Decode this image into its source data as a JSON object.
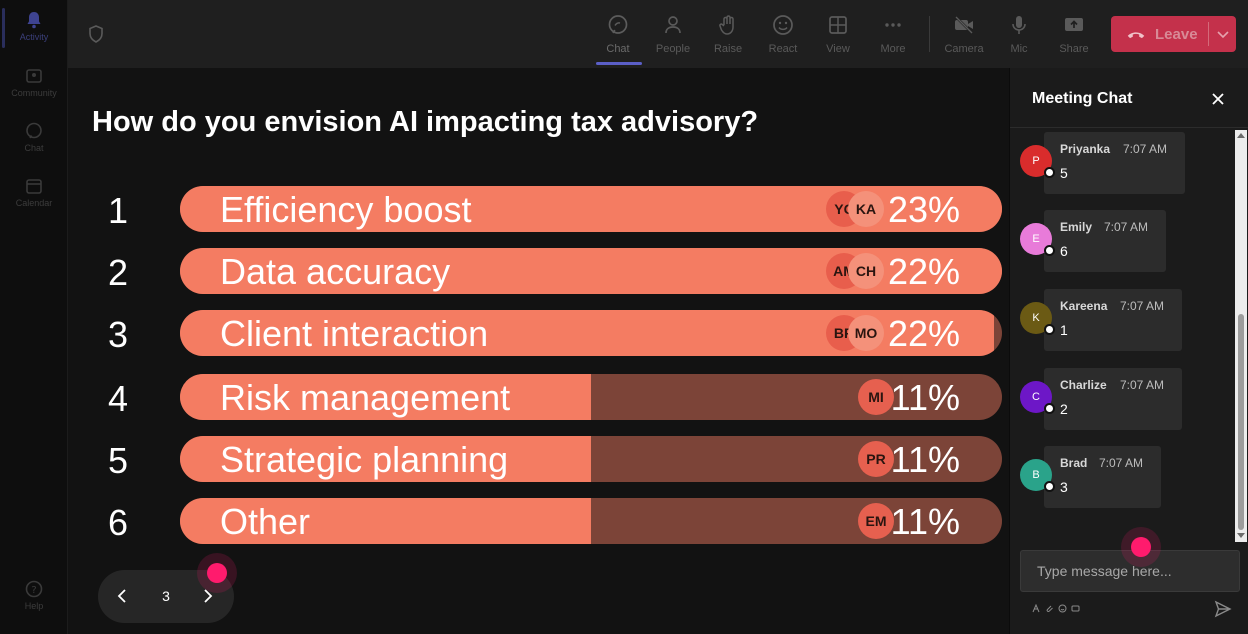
{
  "rail": {
    "items": [
      {
        "label": "Activity",
        "icon": "bell-icon"
      },
      {
        "label": "Community",
        "icon": "community-icon"
      },
      {
        "label": "Chat",
        "icon": "chat-icon"
      },
      {
        "label": "Calendar",
        "icon": "calendar-icon"
      },
      {
        "label": "Help",
        "icon": "help-icon"
      }
    ]
  },
  "toolbar": {
    "buttons": [
      {
        "label": "Chat",
        "icon": "chat-icon"
      },
      {
        "label": "People",
        "icon": "people-icon"
      },
      {
        "label": "Raise",
        "icon": "raise-hand-icon"
      },
      {
        "label": "React",
        "icon": "react-icon"
      },
      {
        "label": "View",
        "icon": "view-grid-icon"
      },
      {
        "label": "More",
        "icon": "more-icon"
      },
      {
        "label": "Camera",
        "icon": "camera-off-icon"
      },
      {
        "label": "Mic",
        "icon": "mic-icon"
      },
      {
        "label": "Share",
        "icon": "share-icon"
      }
    ],
    "leave_label": "Leave",
    "leave_color": "#c4314b",
    "accent_color": "#5b5fc7"
  },
  "poll": {
    "question": "How do you envision AI impacting tax advisory?",
    "bar_color": "#f47c62",
    "track_color": "#7c4438",
    "options": [
      {
        "num": "1",
        "label": "Efficiency boost",
        "percent_text": "23%",
        "fill": 1.0,
        "avatars": [
          "YC",
          "KA"
        ]
      },
      {
        "num": "2",
        "label": "Data accuracy",
        "percent_text": "22%",
        "fill": 1.0,
        "avatars": [
          "AM",
          "CH"
        ]
      },
      {
        "num": "3",
        "label": "Client interaction",
        "percent_text": "22%",
        "fill": 0.99,
        "avatars": [
          "BR",
          "MO"
        ]
      },
      {
        "num": "4",
        "label": "Risk management",
        "percent_text": "11%",
        "fill": 0.5,
        "avatars": [
          "MI"
        ]
      },
      {
        "num": "5",
        "label": "Strategic planning",
        "percent_text": "11%",
        "fill": 0.5,
        "avatars": [
          "PR"
        ]
      },
      {
        "num": "6",
        "label": "Other",
        "percent_text": "11%",
        "fill": 0.5,
        "avatars": [
          "EM"
        ]
      }
    ],
    "pager": {
      "page": "3"
    }
  },
  "chat": {
    "title": "Meeting Chat",
    "messages": [
      {
        "initial": "P",
        "name": "Priyanka",
        "time": "7:07 AM",
        "text": "5",
        "color": "#d92c2c"
      },
      {
        "initial": "E",
        "name": "Emily",
        "time": "7:07 AM",
        "text": "6",
        "color": "#e87bd9"
      },
      {
        "initial": "K",
        "name": "Kareena",
        "time": "7:07 AM",
        "text": "1",
        "color": "#6b5a14"
      },
      {
        "initial": "C",
        "name": "Charlize",
        "time": "7:07 AM",
        "text": "2",
        "color": "#6d17c7"
      },
      {
        "initial": "B",
        "name": "Brad",
        "time": "7:07 AM",
        "text": "3",
        "color": "#2aa38a"
      }
    ],
    "input_placeholder": "Type message here..."
  }
}
